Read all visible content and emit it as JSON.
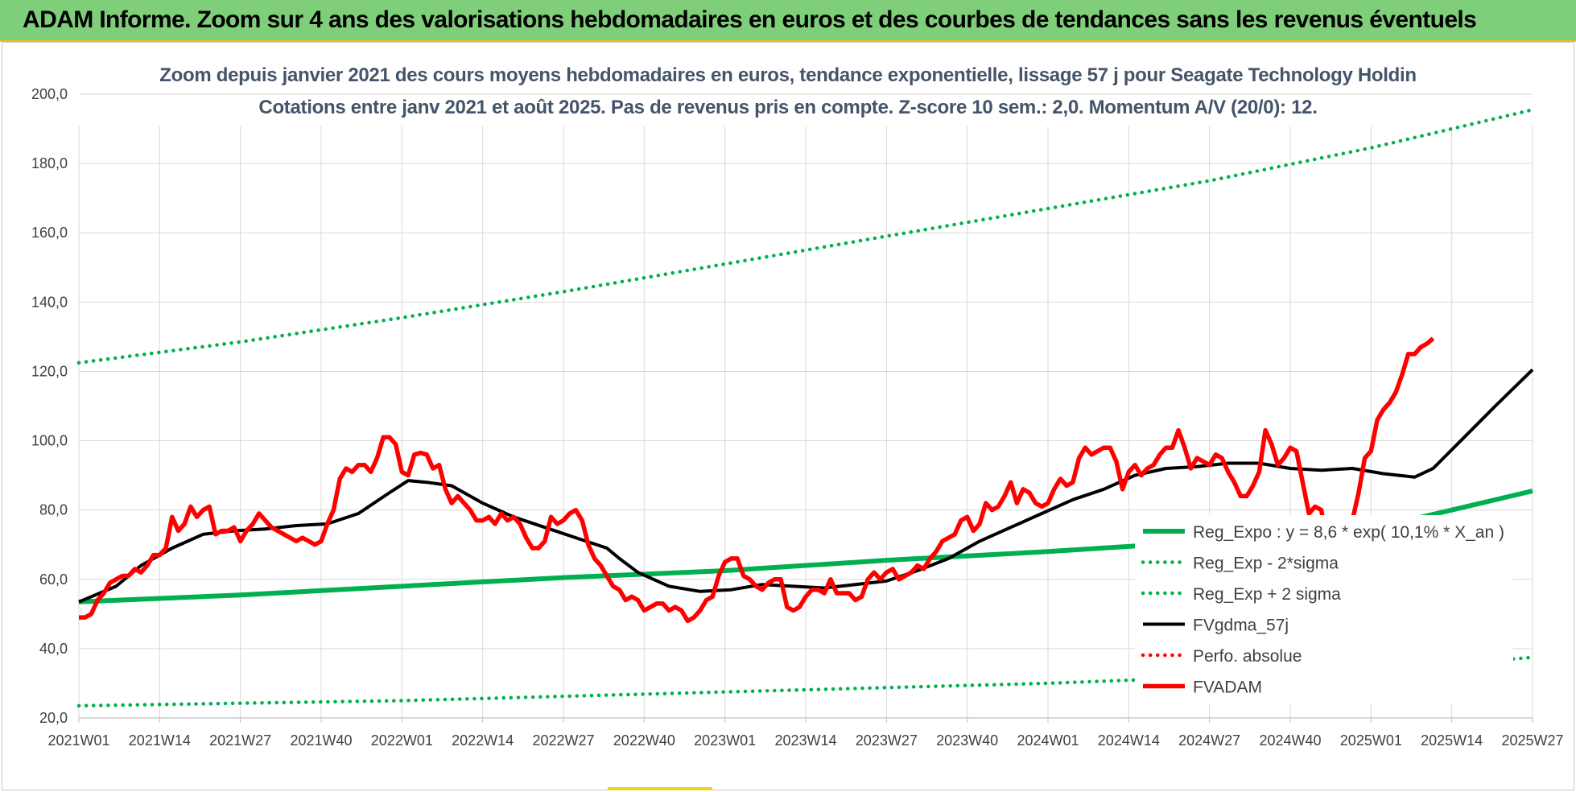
{
  "banner": {
    "title": "ADAM Informe. Zoom sur 4 ans des valorisations hebdomadaires en euros et des courbes de tendances sans les revenus éventuels"
  },
  "colors": {
    "banner_bg": "#7fce7a",
    "reg_green": "#00b050",
    "black": "#000000",
    "red": "#ff0000",
    "title_text": "#44546a"
  },
  "chart_data": {
    "type": "line",
    "title": "Zoom depuis janvier 2021 des cours moyens hebdomadaires en euros, tendance exponentielle, lissage 57 j pour Seagate Technology Holdin",
    "subtitle": "Cotations entre janv 2021 et août 2025.  Pas de revenus pris en compte. Z-score 10 sem.: 2,0. Momentum A/V (20/0): 12.",
    "ylim": [
      20,
      200
    ],
    "grid": true,
    "legend_position": "right",
    "y_ticks": [
      "20,0",
      "40,0",
      "60,0",
      "80,0",
      "100,0",
      "120,0",
      "140,0",
      "160,0",
      "180,0",
      "200,0"
    ],
    "x_ticks": [
      "2021W01",
      "2021W14",
      "2021W27",
      "2021W40",
      "2022W01",
      "2022W14",
      "2022W27",
      "2022W40",
      "2023W01",
      "2023W14",
      "2023W27",
      "2023W40",
      "2024W01",
      "2024W14",
      "2024W27",
      "2024W40",
      "2025W01",
      "2025W14",
      "2025W27"
    ],
    "x_range_weeks": [
      0,
      234
    ],
    "series": [
      {
        "name": "Reg_Expo : y = 8,6 * exp( 10,1% * X_an )",
        "style": "solid",
        "color": "#00b050",
        "points": [
          [
            0,
            53.5
          ],
          [
            26,
            55.5
          ],
          [
            52,
            58
          ],
          [
            78,
            60.5
          ],
          [
            104,
            62.5
          ],
          [
            130,
            65.5
          ],
          [
            156,
            68
          ],
          [
            182,
            71
          ],
          [
            208,
            74.5
          ],
          [
            234,
            85.5
          ]
        ]
      },
      {
        "name": "Reg_Exp - 2*sigma",
        "style": "dotted",
        "color": "#00b050",
        "points": [
          [
            0,
            23.5
          ],
          [
            52,
            25
          ],
          [
            104,
            27.5
          ],
          [
            156,
            30
          ],
          [
            208,
            33.5
          ],
          [
            234,
            37.5
          ]
        ]
      },
      {
        "name": "Reg_Exp + 2 sigma",
        "style": "dotted",
        "color": "#00b050",
        "points": [
          [
            0,
            122.5
          ],
          [
            26,
            128.5
          ],
          [
            52,
            135.5
          ],
          [
            78,
            143
          ],
          [
            104,
            151
          ],
          [
            130,
            159
          ],
          [
            156,
            167
          ],
          [
            182,
            175
          ],
          [
            208,
            184.5
          ],
          [
            234,
            195.5
          ]
        ]
      },
      {
        "name": "FVgdma_57j",
        "style": "solid",
        "color": "#000000",
        "points": [
          [
            0,
            53.5
          ],
          [
            6,
            58
          ],
          [
            10,
            64
          ],
          [
            15,
            69
          ],
          [
            20,
            73
          ],
          [
            25,
            74
          ],
          [
            30,
            74.5
          ],
          [
            35,
            75.5
          ],
          [
            40,
            76
          ],
          [
            45,
            79
          ],
          [
            50,
            85
          ],
          [
            53,
            88.5
          ],
          [
            56,
            88
          ],
          [
            60,
            87
          ],
          [
            65,
            82
          ],
          [
            70,
            78
          ],
          [
            75,
            75
          ],
          [
            80,
            72
          ],
          [
            85,
            69
          ],
          [
            87,
            66
          ],
          [
            90,
            62
          ],
          [
            95,
            58
          ],
          [
            100,
            56.5
          ],
          [
            105,
            57
          ],
          [
            110,
            58.5
          ],
          [
            115,
            58
          ],
          [
            120,
            57.5
          ],
          [
            125,
            58.5
          ],
          [
            130,
            59.5
          ],
          [
            135,
            62.5
          ],
          [
            140,
            66
          ],
          [
            145,
            71
          ],
          [
            150,
            75
          ],
          [
            155,
            79
          ],
          [
            160,
            83
          ],
          [
            165,
            86
          ],
          [
            170,
            90
          ],
          [
            175,
            92
          ],
          [
            180,
            92.5
          ],
          [
            185,
            93.5
          ],
          [
            190,
            93.5
          ],
          [
            195,
            92
          ],
          [
            200,
            91.5
          ],
          [
            205,
            92
          ],
          [
            210,
            90.5
          ],
          [
            215,
            89.5
          ],
          [
            218,
            92
          ],
          [
            223,
            101
          ],
          [
            228,
            110
          ],
          [
            234,
            120.5
          ]
        ]
      },
      {
        "name": "Perfo. absolue",
        "style": "dotted",
        "color": "#ff0000",
        "points": []
      },
      {
        "name": "FVADAM",
        "style": "solid",
        "color": "#ff0000",
        "points": [
          [
            0,
            49
          ],
          [
            1,
            49
          ],
          [
            2,
            50
          ],
          [
            3,
            54
          ],
          [
            4,
            56
          ],
          [
            5,
            59
          ],
          [
            6,
            60
          ],
          [
            7,
            61
          ],
          [
            8,
            61
          ],
          [
            9,
            63
          ],
          [
            10,
            62
          ],
          [
            11,
            64
          ],
          [
            12,
            67
          ],
          [
            13,
            67
          ],
          [
            14,
            69
          ],
          [
            15,
            78
          ],
          [
            16,
            74
          ],
          [
            17,
            76
          ],
          [
            18,
            81
          ],
          [
            19,
            78
          ],
          [
            20,
            80
          ],
          [
            21,
            81
          ],
          [
            22,
            73
          ],
          [
            23,
            74
          ],
          [
            24,
            74
          ],
          [
            25,
            75
          ],
          [
            26,
            71
          ],
          [
            27,
            74
          ],
          [
            28,
            76
          ],
          [
            29,
            79
          ],
          [
            30,
            77
          ],
          [
            31,
            75
          ],
          [
            32,
            74
          ],
          [
            33,
            73
          ],
          [
            34,
            72
          ],
          [
            35,
            71
          ],
          [
            36,
            72
          ],
          [
            37,
            71
          ],
          [
            38,
            70
          ],
          [
            39,
            71
          ],
          [
            40,
            76
          ],
          [
            41,
            80
          ],
          [
            42,
            89
          ],
          [
            43,
            92
          ],
          [
            44,
            91
          ],
          [
            45,
            93
          ],
          [
            46,
            93
          ],
          [
            47,
            91
          ],
          [
            48,
            95
          ],
          [
            49,
            101
          ],
          [
            50,
            101
          ],
          [
            51,
            99
          ],
          [
            52,
            91
          ],
          [
            53,
            90
          ],
          [
            54,
            96
          ],
          [
            55,
            96.5
          ],
          [
            56,
            96
          ],
          [
            57,
            92
          ],
          [
            58,
            93
          ],
          [
            59,
            86
          ],
          [
            60,
            82
          ],
          [
            61,
            84
          ],
          [
            62,
            82
          ],
          [
            63,
            80
          ],
          [
            64,
            77
          ],
          [
            65,
            77
          ],
          [
            66,
            78
          ],
          [
            67,
            76
          ],
          [
            68,
            79
          ],
          [
            69,
            77
          ],
          [
            70,
            78
          ],
          [
            71,
            76
          ],
          [
            72,
            72
          ],
          [
            73,
            69
          ],
          [
            74,
            69
          ],
          [
            75,
            71
          ],
          [
            76,
            78
          ],
          [
            77,
            76
          ],
          [
            78,
            77
          ],
          [
            79,
            79
          ],
          [
            80,
            80
          ],
          [
            81,
            77
          ],
          [
            82,
            70
          ],
          [
            83,
            66
          ],
          [
            84,
            64
          ],
          [
            85,
            61
          ],
          [
            86,
            58
          ],
          [
            87,
            57
          ],
          [
            88,
            54
          ],
          [
            89,
            55
          ],
          [
            90,
            54
          ],
          [
            91,
            51
          ],
          [
            92,
            52
          ],
          [
            93,
            53
          ],
          [
            94,
            53
          ],
          [
            95,
            51
          ],
          [
            96,
            52
          ],
          [
            97,
            51
          ],
          [
            98,
            48
          ],
          [
            99,
            49
          ],
          [
            100,
            51
          ],
          [
            101,
            54
          ],
          [
            102,
            55
          ],
          [
            103,
            61
          ],
          [
            104,
            65
          ],
          [
            105,
            66
          ],
          [
            106,
            66
          ],
          [
            107,
            61
          ],
          [
            108,
            60
          ],
          [
            109,
            58
          ],
          [
            110,
            57
          ],
          [
            111,
            59
          ],
          [
            112,
            60
          ],
          [
            113,
            60
          ],
          [
            114,
            52
          ],
          [
            115,
            51
          ],
          [
            116,
            52
          ],
          [
            117,
            55
          ],
          [
            118,
            57
          ],
          [
            119,
            57
          ],
          [
            120,
            56
          ],
          [
            121,
            60
          ],
          [
            122,
            56
          ],
          [
            123,
            56
          ],
          [
            124,
            56
          ],
          [
            125,
            54
          ],
          [
            126,
            55
          ],
          [
            127,
            60
          ],
          [
            128,
            62
          ],
          [
            129,
            60
          ],
          [
            130,
            62
          ],
          [
            131,
            63
          ],
          [
            132,
            60
          ],
          [
            133,
            61
          ],
          [
            134,
            62
          ],
          [
            135,
            64
          ],
          [
            136,
            63
          ],
          [
            137,
            66
          ],
          [
            138,
            68
          ],
          [
            139,
            71
          ],
          [
            140,
            72
          ],
          [
            141,
            73
          ],
          [
            142,
            77
          ],
          [
            143,
            78
          ],
          [
            144,
            74
          ],
          [
            145,
            76
          ],
          [
            146,
            82
          ],
          [
            147,
            80
          ],
          [
            148,
            81
          ],
          [
            149,
            84
          ],
          [
            150,
            88
          ],
          [
            151,
            82
          ],
          [
            152,
            86
          ],
          [
            153,
            85
          ],
          [
            154,
            82
          ],
          [
            155,
            81
          ],
          [
            156,
            82
          ],
          [
            157,
            86
          ],
          [
            158,
            89
          ],
          [
            159,
            87
          ],
          [
            160,
            88
          ],
          [
            161,
            95
          ],
          [
            162,
            98
          ],
          [
            163,
            96
          ],
          [
            164,
            97
          ],
          [
            165,
            98
          ],
          [
            166,
            98
          ],
          [
            167,
            94
          ],
          [
            168,
            86
          ],
          [
            169,
            91
          ],
          [
            170,
            93
          ],
          [
            171,
            90
          ],
          [
            172,
            92
          ],
          [
            173,
            93
          ],
          [
            174,
            96
          ],
          [
            175,
            98
          ],
          [
            176,
            98
          ],
          [
            177,
            103
          ],
          [
            178,
            98
          ],
          [
            179,
            92
          ],
          [
            180,
            95
          ],
          [
            181,
            94
          ],
          [
            182,
            93
          ],
          [
            183,
            96
          ],
          [
            184,
            95
          ],
          [
            185,
            91
          ],
          [
            186,
            88
          ],
          [
            187,
            84
          ],
          [
            188,
            84
          ],
          [
            189,
            87
          ],
          [
            190,
            91
          ],
          [
            191,
            103
          ],
          [
            192,
            99
          ],
          [
            193,
            93
          ],
          [
            194,
            95
          ],
          [
            195,
            98
          ],
          [
            196,
            97
          ],
          [
            197,
            88
          ],
          [
            198,
            79
          ],
          [
            199,
            81
          ],
          [
            200,
            80
          ],
          [
            201,
            70
          ],
          [
            202,
            63
          ],
          [
            203,
            65
          ],
          [
            204,
            69
          ],
          [
            205,
            77
          ],
          [
            206,
            85
          ],
          [
            207,
            95
          ],
          [
            208,
            97
          ],
          [
            209,
            106
          ],
          [
            210,
            109
          ],
          [
            211,
            111
          ],
          [
            212,
            114
          ],
          [
            213,
            119
          ],
          [
            214,
            125
          ],
          [
            215,
            125
          ],
          [
            216,
            127
          ],
          [
            217,
            128
          ],
          [
            218,
            129.5
          ]
        ]
      }
    ]
  }
}
